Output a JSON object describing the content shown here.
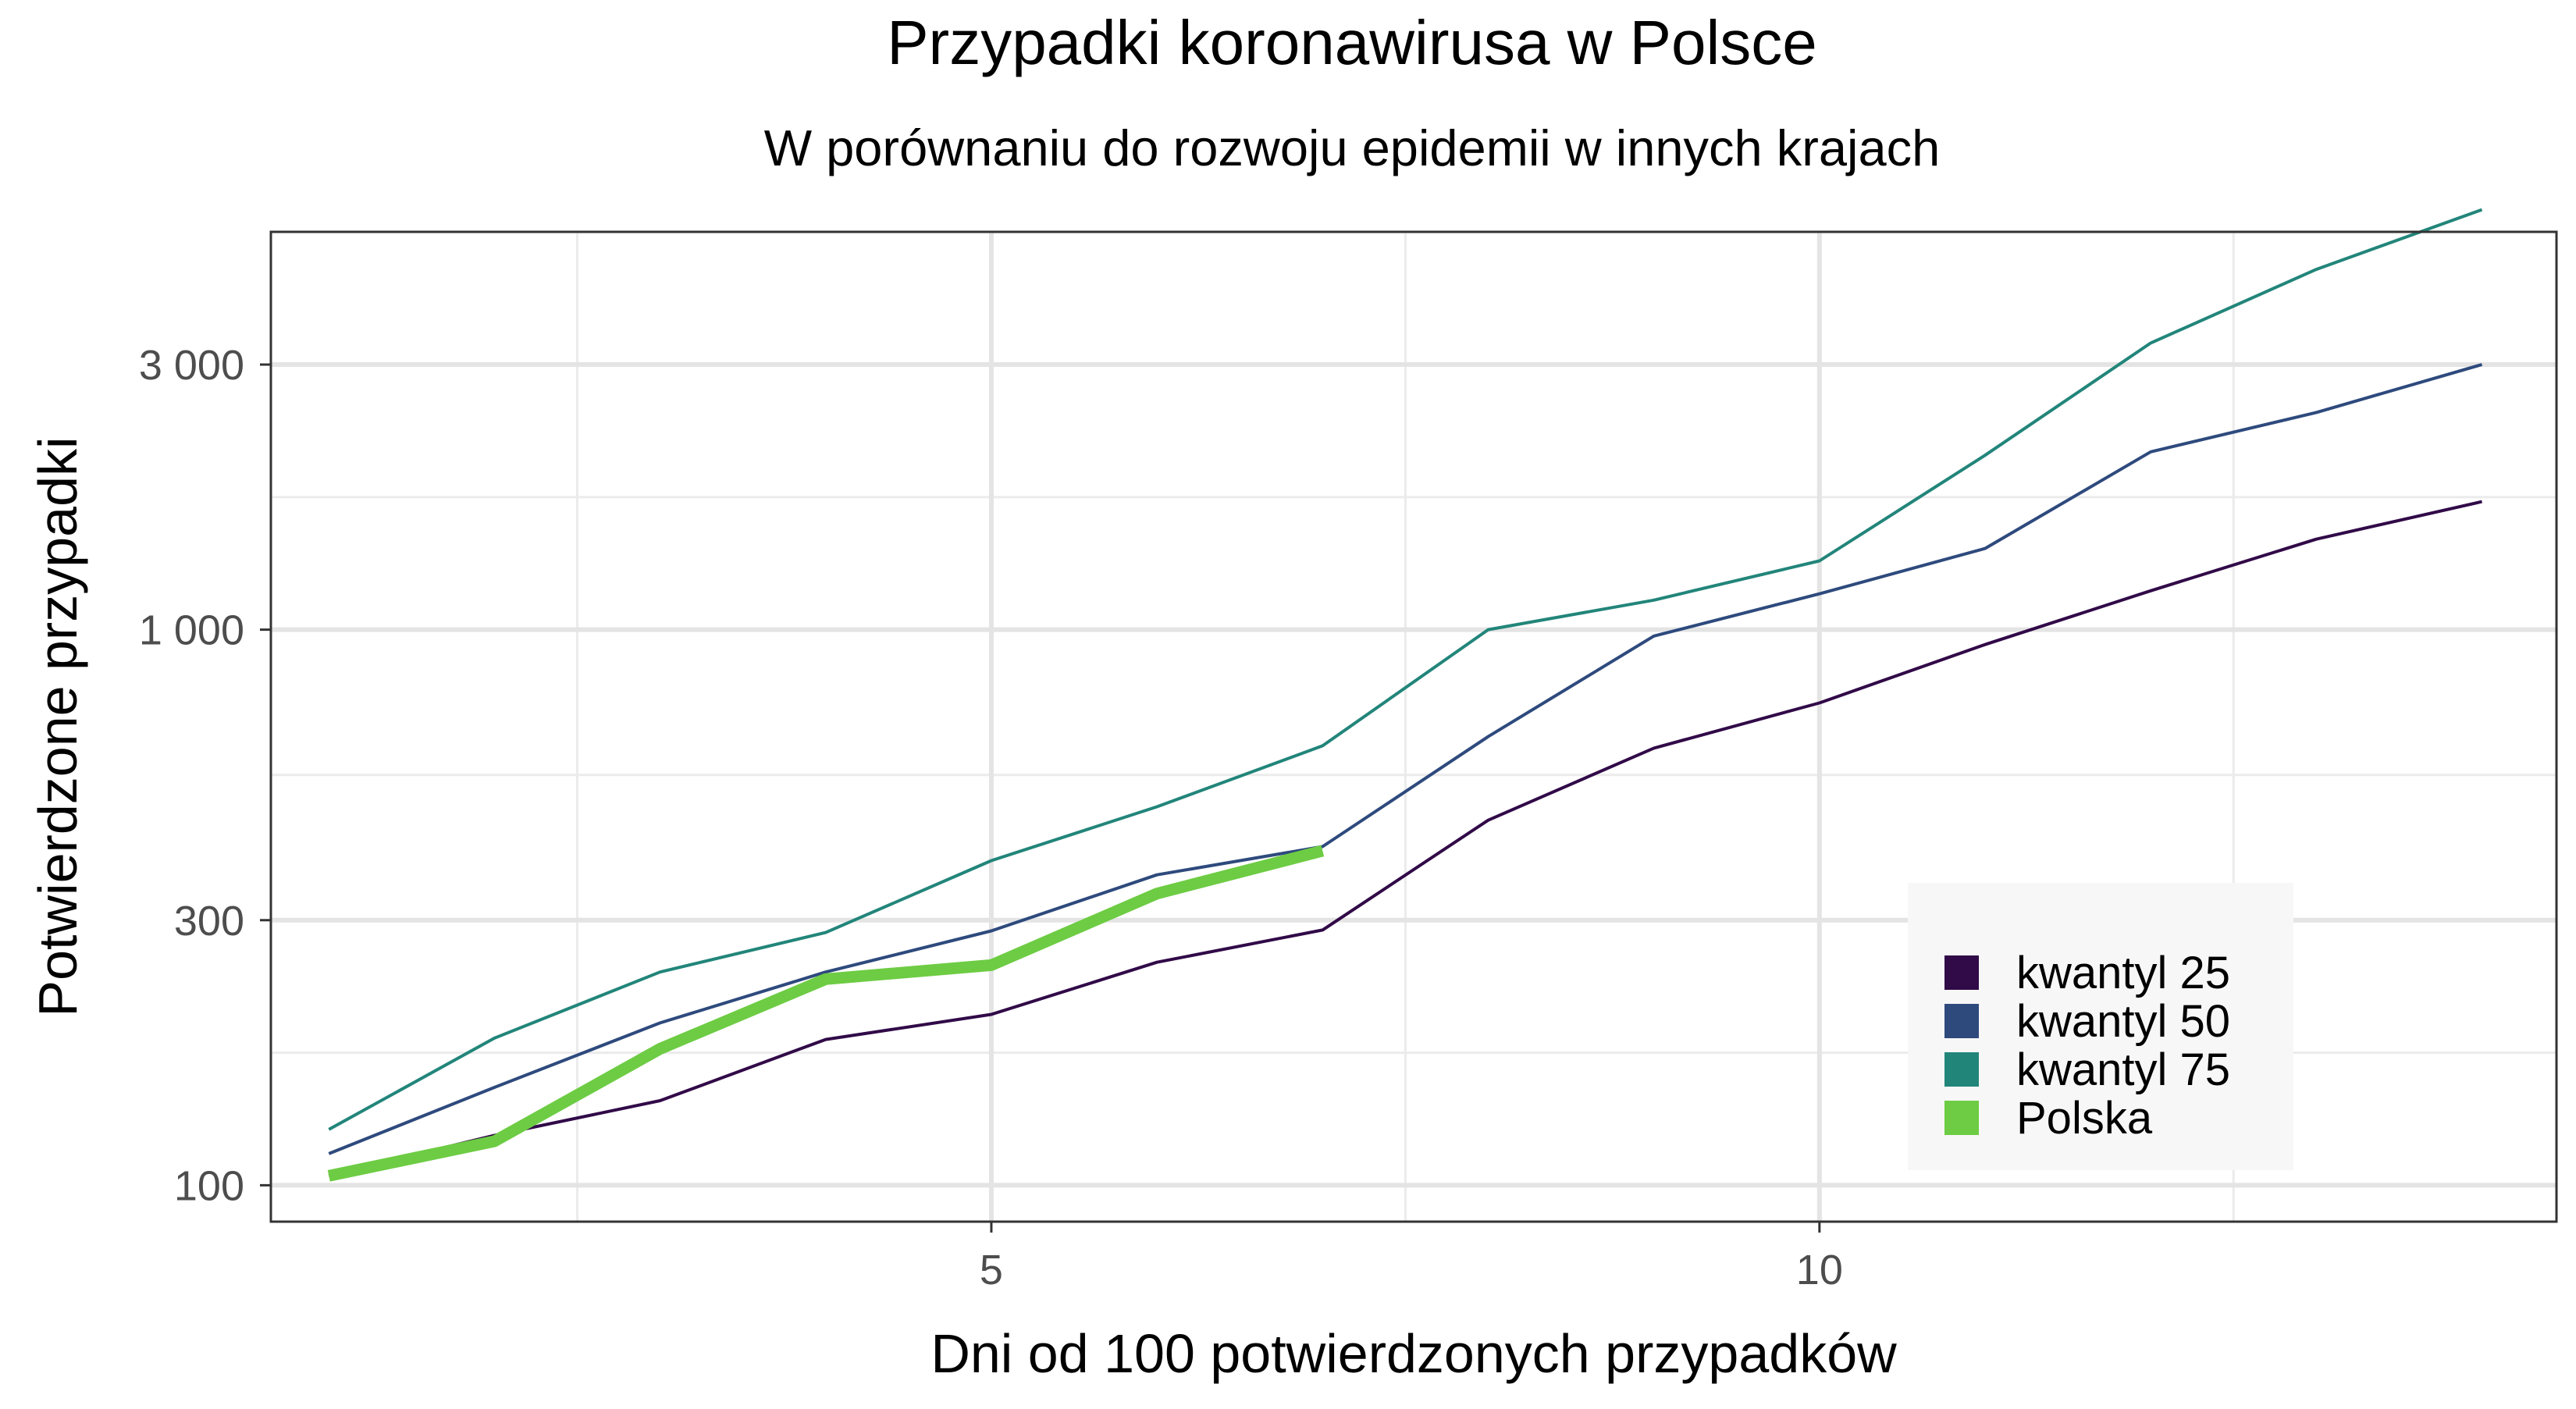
{
  "chart_data": {
    "type": "line",
    "title": "Przypadki koronawirusa w Polsce",
    "subtitle": "W porównaniu do rozwoju epidemii w innych krajach",
    "xlabel": "Dni od 100 potwierdzonych przypadków",
    "ylabel": "Potwierdzone przypadki",
    "x_scale": "linear",
    "y_scale": "log10",
    "xlim": [
      0.65,
      14.45
    ],
    "ylim": [
      86,
      5200
    ],
    "x_ticks": [
      5,
      10
    ],
    "x_tick_labels": [
      "5",
      "10"
    ],
    "y_ticks": [
      100,
      300,
      1000,
      3000
    ],
    "y_tick_labels": [
      "100",
      "300",
      "1 000",
      "3 000"
    ],
    "grid": true,
    "legend_position": "bottom-right",
    "colors": {
      "kwantyl 25": "#310a48",
      "kwantyl 50": "#2e4a7d",
      "kwantyl 75": "#22857a",
      "Polska": "#6dcc43"
    },
    "series": [
      {
        "name": "kwantyl 25",
        "x": [
          1,
          2,
          3,
          4,
          5,
          6,
          7,
          8,
          9,
          10,
          11,
          12,
          13,
          14
        ],
        "y": [
          104,
          123,
          142,
          183,
          203,
          252,
          288,
          454,
          612,
          738,
          940,
          1175,
          1455,
          1700
        ]
      },
      {
        "name": "kwantyl 50",
        "x": [
          1,
          2,
          3,
          4,
          5,
          6,
          7,
          8,
          9,
          10,
          11,
          12,
          13,
          14
        ],
        "y": [
          114,
          150,
          196,
          242,
          287,
          362,
          407,
          642,
          974,
          1160,
          1400,
          2090,
          2460,
          3000
        ]
      },
      {
        "name": "kwantyl 75",
        "x": [
          1,
          2,
          3,
          4,
          5,
          6,
          7,
          8,
          9,
          10,
          11,
          12,
          13,
          14
        ],
        "y": [
          126,
          184,
          242,
          285,
          384,
          480,
          618,
          1000,
          1130,
          1330,
          2060,
          3280,
          4450,
          5700
        ]
      },
      {
        "name": "Polska",
        "x": [
          1,
          2,
          3,
          4,
          5,
          6,
          7
        ],
        "y": [
          104,
          120,
          176,
          235,
          249,
          335,
          400
        ]
      }
    ]
  }
}
